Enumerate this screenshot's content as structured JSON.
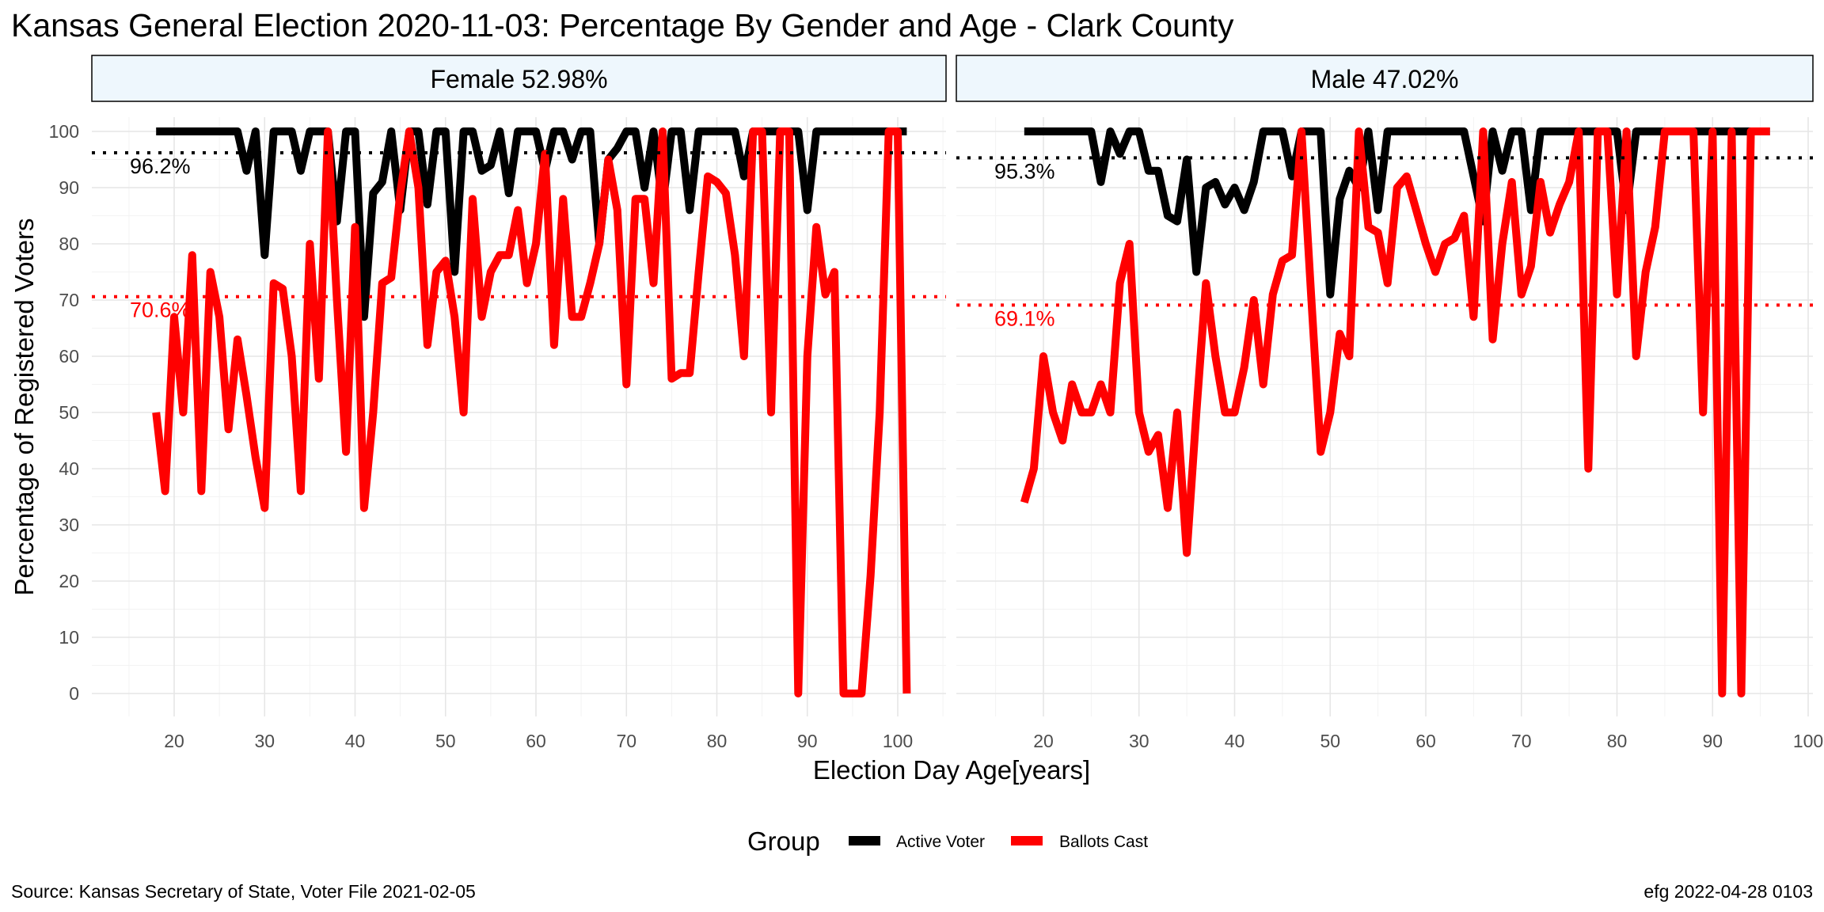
{
  "chart_data": {
    "type": "line",
    "title": "Kansas General Election 2020-11-03:  Percentage By Gender and Age - Clark County",
    "xlabel": "Election Day Age[years]",
    "ylabel": "Percentage of Registered Voters",
    "ylim": [
      0,
      100
    ],
    "yticks": [
      0,
      10,
      20,
      30,
      40,
      50,
      60,
      70,
      80,
      90,
      100
    ],
    "grid": true,
    "legend": {
      "title": "Group",
      "position": "bottom",
      "items": [
        {
          "label": "Active Voter",
          "color": "#000000"
        },
        {
          "label": "Ballots Cast",
          "color": "#ff0000"
        }
      ]
    },
    "caption_left": "Source:  Kansas Secretary of State, Voter File  2021-02-05",
    "caption_right": "efg 2022-04-28 0103",
    "panels": [
      {
        "label": "Female 52.98%",
        "xlim": [
          18,
          101
        ],
        "xticks": [
          20,
          30,
          40,
          50,
          60,
          70,
          80,
          90,
          100
        ],
        "series": [
          {
            "name": "Active Voter",
            "color": "#000000",
            "mean": 96.2,
            "mean_label": "96.2%",
            "x": [
              18,
              19,
              20,
              21,
              22,
              23,
              24,
              25,
              26,
              27,
              28,
              29,
              30,
              31,
              32,
              33,
              34,
              35,
              36,
              37,
              38,
              39,
              40,
              41,
              42,
              43,
              44,
              45,
              46,
              47,
              48,
              49,
              50,
              51,
              52,
              53,
              54,
              55,
              56,
              57,
              58,
              59,
              60,
              61,
              62,
              63,
              64,
              65,
              66,
              67,
              68,
              69,
              70,
              71,
              72,
              73,
              74,
              75,
              76,
              77,
              78,
              79,
              80,
              81,
              82,
              83,
              84,
              85,
              86,
              87,
              88,
              89,
              90,
              91,
              92,
              93,
              94,
              95,
              96,
              97,
              98,
              99,
              100,
              101
            ],
            "y": [
              100,
              100,
              100,
              100,
              100,
              100,
              100,
              100,
              100,
              100,
              93,
              100,
              78,
              100,
              100,
              100,
              93,
              100,
              100,
              100,
              84,
              100,
              100,
              67,
              89,
              91,
              100,
              86,
              100,
              100,
              87,
              100,
              100,
              75,
              100,
              100,
              93,
              94,
              100,
              89,
              100,
              100,
              100,
              93,
              100,
              100,
              95,
              100,
              100,
              80,
              95,
              97,
              100,
              100,
              90,
              100,
              87,
              100,
              100,
              86,
              100,
              100,
              100,
              100,
              100,
              92,
              100,
              100,
              100,
              100,
              100,
              100,
              86,
              100,
              100,
              100,
              100,
              100,
              100,
              100,
              100,
              100,
              100,
              100
            ]
          },
          {
            "name": "Ballots Cast",
            "color": "#ff0000",
            "mean": 70.6,
            "mean_label": "70.6%",
            "x": [
              18,
              19,
              20,
              21,
              22,
              23,
              24,
              25,
              26,
              27,
              28,
              29,
              30,
              31,
              32,
              33,
              34,
              35,
              36,
              37,
              38,
              39,
              40,
              41,
              42,
              43,
              44,
              45,
              46,
              47,
              48,
              49,
              50,
              51,
              52,
              53,
              54,
              55,
              56,
              57,
              58,
              59,
              60,
              61,
              62,
              63,
              64,
              65,
              66,
              67,
              68,
              69,
              70,
              71,
              72,
              73,
              74,
              75,
              76,
              77,
              78,
              79,
              80,
              81,
              82,
              83,
              84,
              85,
              86,
              87,
              88,
              89,
              90,
              91,
              92,
              93,
              94,
              95,
              96,
              97,
              98,
              99,
              100,
              101
            ],
            "y": [
              50,
              36,
              67,
              50,
              78,
              36,
              75,
              67,
              47,
              63,
              53,
              42,
              33,
              73,
              72,
              60,
              36,
              80,
              56,
              100,
              70,
              43,
              83,
              33,
              50,
              73,
              74,
              89,
              100,
              90,
              62,
              75,
              77,
              67,
              50,
              88,
              67,
              75,
              78,
              78,
              86,
              73,
              80,
              96,
              62,
              88,
              67,
              67,
              73,
              80,
              95,
              86,
              55,
              88,
              88,
              73,
              100,
              56,
              57,
              57,
              75,
              92,
              91,
              89,
              78,
              60,
              100,
              100,
              50,
              100,
              100,
              0,
              60,
              83,
              71,
              75,
              0,
              0,
              0,
              21,
              50,
              100,
              100,
              0
            ]
          }
        ]
      },
      {
        "label": "Male 47.02%",
        "xlim": [
          18,
          100
        ],
        "xticks": [
          20,
          30,
          40,
          50,
          60,
          70,
          80,
          90,
          100
        ],
        "series": [
          {
            "name": "Active Voter",
            "color": "#000000",
            "mean": 95.3,
            "mean_label": "95.3%",
            "x": [
              18,
              19,
              20,
              21,
              22,
              23,
              24,
              25,
              26,
              27,
              28,
              29,
              30,
              31,
              32,
              33,
              34,
              35,
              36,
              37,
              38,
              39,
              40,
              41,
              42,
              43,
              44,
              45,
              46,
              47,
              48,
              49,
              50,
              51,
              52,
              53,
              54,
              55,
              56,
              57,
              58,
              59,
              60,
              61,
              62,
              63,
              64,
              65,
              66,
              67,
              68,
              69,
              70,
              71,
              72,
              73,
              74,
              75,
              76,
              77,
              78,
              79,
              80,
              81,
              82,
              83,
              84,
              85,
              86,
              87,
              88,
              89,
              90,
              91,
              92,
              93,
              94,
              95,
              96
            ],
            "y": [
              100,
              100,
              100,
              100,
              100,
              100,
              100,
              100,
              91,
              100,
              96,
              100,
              100,
              93,
              93,
              85,
              84,
              95,
              75,
              90,
              91,
              87,
              90,
              86,
              91,
              100,
              100,
              100,
              92,
              100,
              100,
              100,
              71,
              88,
              93,
              90,
              100,
              86,
              100,
              100,
              100,
              100,
              100,
              100,
              100,
              100,
              100,
              92,
              84,
              100,
              93,
              100,
              100,
              86,
              100,
              100,
              100,
              100,
              100,
              100,
              100,
              100,
              100,
              86,
              100,
              100,
              100,
              100,
              100,
              100,
              100,
              100,
              100,
              100,
              100,
              100,
              100,
              100,
              100
            ]
          },
          {
            "name": "Ballots Cast",
            "color": "#ff0000",
            "mean": 69.1,
            "mean_label": "69.1%",
            "x": [
              18,
              19,
              20,
              21,
              22,
              23,
              24,
              25,
              26,
              27,
              28,
              29,
              30,
              31,
              32,
              33,
              34,
              35,
              36,
              37,
              38,
              39,
              40,
              41,
              42,
              43,
              44,
              45,
              46,
              47,
              48,
              49,
              50,
              51,
              52,
              53,
              54,
              55,
              56,
              57,
              58,
              59,
              60,
              61,
              62,
              63,
              64,
              65,
              66,
              67,
              68,
              69,
              70,
              71,
              72,
              73,
              74,
              75,
              76,
              77,
              78,
              79,
              80,
              81,
              82,
              83,
              84,
              85,
              86,
              87,
              88,
              89,
              90,
              91,
              92,
              93,
              94,
              95,
              96
            ],
            "y": [
              34,
              40,
              60,
              50,
              45,
              55,
              50,
              50,
              55,
              50,
              73,
              80,
              50,
              43,
              46,
              33,
              50,
              25,
              50,
              73,
              60,
              50,
              50,
              58,
              70,
              55,
              71,
              77,
              78,
              100,
              71,
              43,
              50,
              64,
              60,
              100,
              83,
              82,
              73,
              90,
              92,
              86,
              80,
              75,
              80,
              81,
              85,
              67,
              100,
              63,
              80,
              91,
              71,
              76,
              91,
              82,
              87,
              91,
              100,
              40,
              100,
              100,
              71,
              100,
              60,
              75,
              83,
              100,
              100,
              100,
              100,
              50,
              100,
              0,
              100,
              0,
              100,
              100,
              100
            ]
          }
        ]
      }
    ]
  }
}
